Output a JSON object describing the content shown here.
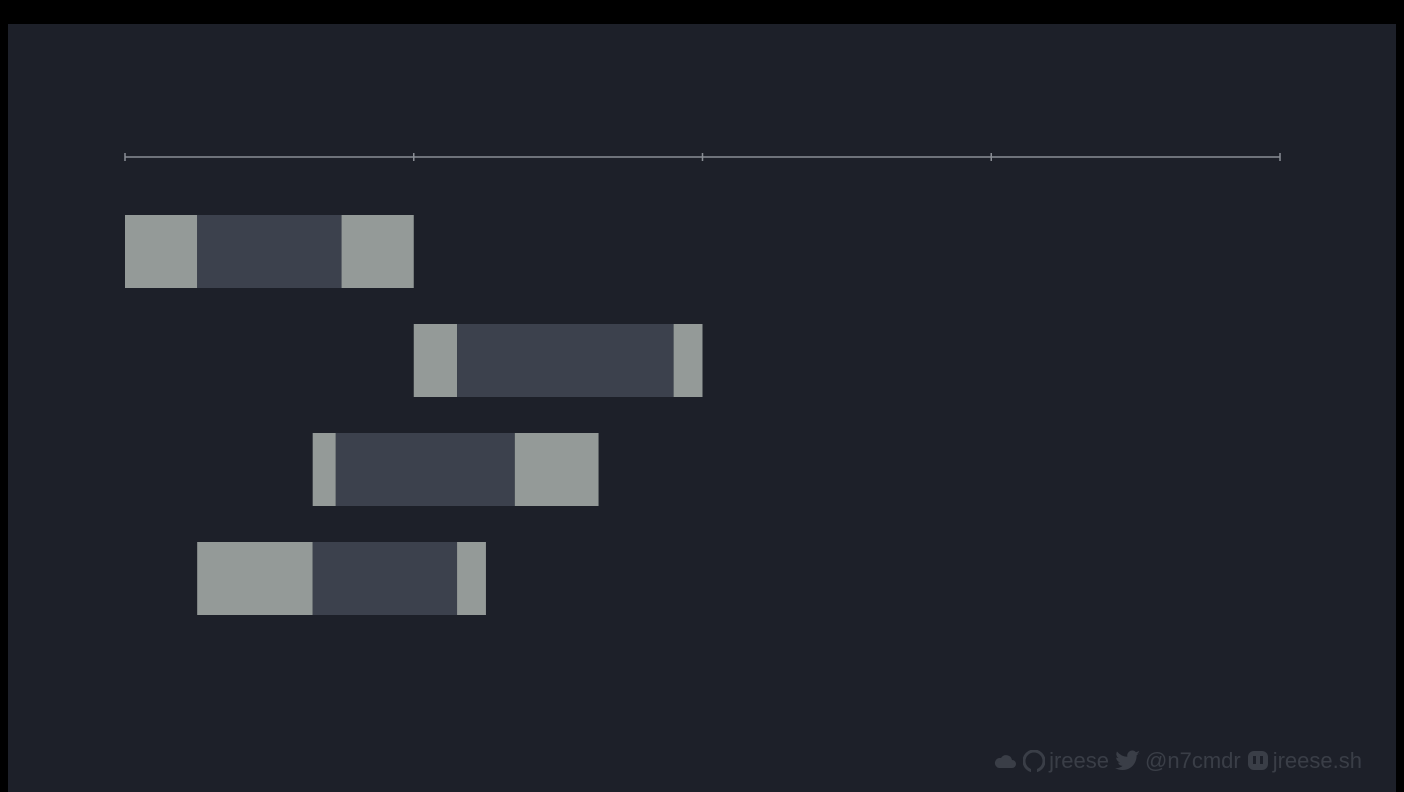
{
  "diagram": {
    "type": "timeline",
    "axis": {
      "start": 0,
      "end": 4,
      "ticks": [
        0,
        1,
        2,
        3,
        4
      ]
    },
    "rows": [
      {
        "segments": [
          {
            "from": 0,
            "to": 0.25,
            "kind": "light"
          },
          {
            "from": 0.25,
            "to": 0.75,
            "kind": "dark"
          },
          {
            "from": 0.75,
            "to": 1.0,
            "kind": "light"
          }
        ]
      },
      {
        "segments": [
          {
            "from": 1.0,
            "to": 1.15,
            "kind": "light"
          },
          {
            "from": 1.15,
            "to": 1.9,
            "kind": "dark"
          },
          {
            "from": 1.9,
            "to": 2.0,
            "kind": "light"
          }
        ]
      },
      {
        "segments": [
          {
            "from": 0.65,
            "to": 0.73,
            "kind": "light"
          },
          {
            "from": 0.73,
            "to": 1.35,
            "kind": "dark"
          },
          {
            "from": 1.35,
            "to": 1.64,
            "kind": "light"
          }
        ]
      },
      {
        "segments": [
          {
            "from": 0.25,
            "to": 0.65,
            "kind": "light"
          },
          {
            "from": 0.65,
            "to": 1.15,
            "kind": "dark"
          },
          {
            "from": 1.15,
            "to": 1.25,
            "kind": "light"
          }
        ]
      }
    ],
    "colors": {
      "background": "#1d2029",
      "axis": "#8a8e95",
      "light": "#949a98",
      "dark": "#3c414d"
    }
  },
  "footer": {
    "cloud_icon": "cloud-icon",
    "github_icon": "github-icon",
    "github_handle": "jreese",
    "twitter_icon": "twitter-icon",
    "twitter_handle": "@n7cmdr",
    "mastodon_icon": "mastodon-icon",
    "mastodon_handle": "jreese.sh"
  }
}
